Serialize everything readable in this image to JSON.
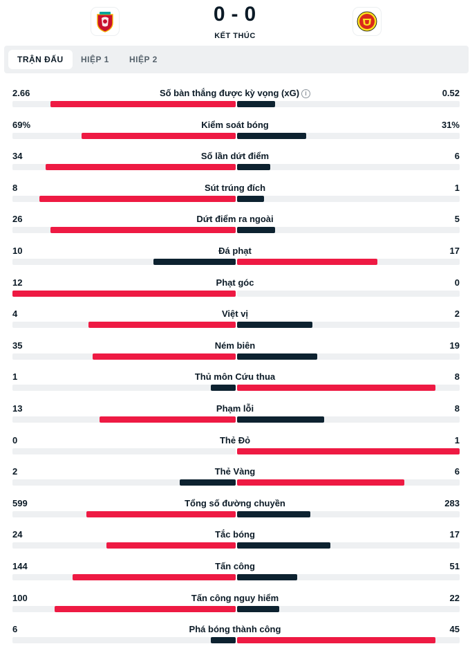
{
  "match": {
    "home_score": "0",
    "away_score": "0",
    "score_separator": "-",
    "status": "KẾT THÚC",
    "home_logo_icon": "liverpool-crest-icon",
    "away_logo_icon": "manchester-united-crest-icon"
  },
  "tabs": [
    {
      "label": "TRẬN ĐẤU",
      "active": true
    },
    {
      "label": "HIỆP 1",
      "active": false
    },
    {
      "label": "HIỆP 2",
      "active": false
    }
  ],
  "colors": {
    "winner": "#ee1a43",
    "loser": "#0d2230",
    "track": "#eef0f2"
  },
  "stats": [
    {
      "label": "Số bàn thắng được kỳ vọng (xG)",
      "home": "2.66",
      "away": "0.52",
      "home_ratio": 0.83,
      "away_ratio": 0.17,
      "info_icon": "info-icon"
    },
    {
      "label": "Kiểm soát bóng",
      "home": "69%",
      "away": "31%",
      "home_ratio": 0.69,
      "away_ratio": 0.31
    },
    {
      "label": "Số lần dứt điểm",
      "home": "34",
      "away": "6",
      "home_ratio": 0.85,
      "away_ratio": 0.15
    },
    {
      "label": "Sút trúng đích",
      "home": "8",
      "away": "1",
      "home_ratio": 0.88,
      "away_ratio": 0.12
    },
    {
      "label": "Dứt điểm ra ngoài",
      "home": "26",
      "away": "5",
      "home_ratio": 0.83,
      "away_ratio": 0.17
    },
    {
      "label": "Đá phạt",
      "home": "10",
      "away": "17",
      "home_ratio": 0.37,
      "away_ratio": 0.63
    },
    {
      "label": "Phạt góc",
      "home": "12",
      "away": "0",
      "home_ratio": 1.0,
      "away_ratio": 0.0
    },
    {
      "label": "Việt vị",
      "home": "4",
      "away": "2",
      "home_ratio": 0.66,
      "away_ratio": 0.34
    },
    {
      "label": "Ném biên",
      "home": "35",
      "away": "19",
      "home_ratio": 0.64,
      "away_ratio": 0.36
    },
    {
      "label": "Thủ môn Cứu thua",
      "home": "1",
      "away": "8",
      "home_ratio": 0.11,
      "away_ratio": 0.89
    },
    {
      "label": "Phạm lỗi",
      "home": "13",
      "away": "8",
      "home_ratio": 0.61,
      "away_ratio": 0.39
    },
    {
      "label": "Thẻ Đỏ",
      "home": "0",
      "away": "1",
      "home_ratio": 0.0,
      "away_ratio": 1.0
    },
    {
      "label": "Thẻ Vàng",
      "home": "2",
      "away": "6",
      "home_ratio": 0.25,
      "away_ratio": 0.75
    },
    {
      "label": "Tổng số đường chuyền",
      "home": "599",
      "away": "283",
      "home_ratio": 0.67,
      "away_ratio": 0.33
    },
    {
      "label": "Tắc bóng",
      "home": "24",
      "away": "17",
      "home_ratio": 0.58,
      "away_ratio": 0.42
    },
    {
      "label": "Tấn công",
      "home": "144",
      "away": "51",
      "home_ratio": 0.73,
      "away_ratio": 0.27
    },
    {
      "label": "Tấn công nguy hiểm",
      "home": "100",
      "away": "22",
      "home_ratio": 0.81,
      "away_ratio": 0.19
    },
    {
      "label": "Phá bóng thành công",
      "home": "6",
      "away": "45",
      "home_ratio": 0.11,
      "away_ratio": 0.89
    }
  ]
}
